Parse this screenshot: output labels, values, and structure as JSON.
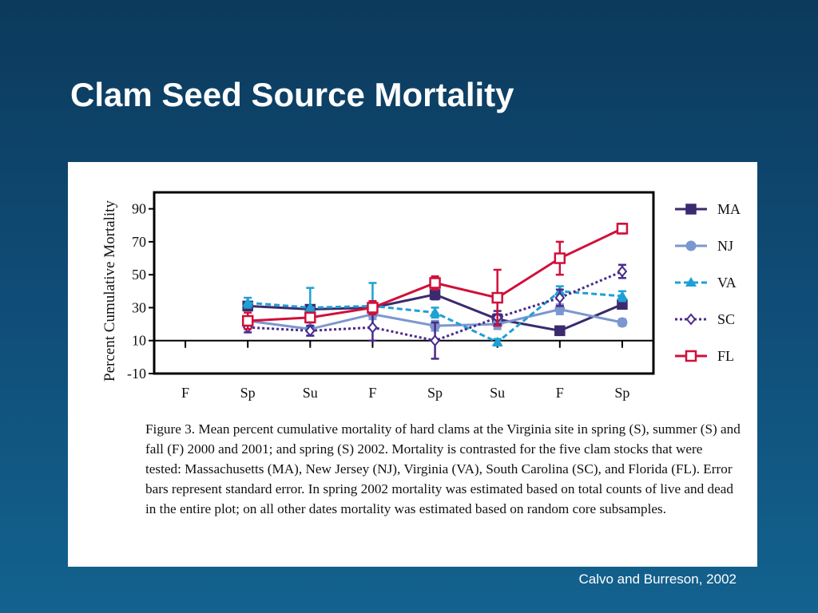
{
  "slide": {
    "title": "Clam Seed Source Mortality",
    "citation": "Calvo and Burreson, 2002",
    "caption": "Figure 3. Mean percent cumulative mortality of hard clams at the Virginia site in spring (S), summer (S) and fall (F) 2000 and 2001; and spring (S) 2002. Mortality is contrasted for the five clam stocks that were tested: Massachusetts (MA), New Jersey (NJ), Virginia (VA), South Carolina (SC), and Florida (FL). Error bars represent standard error. In spring 2002 mortality was estimated based on total counts of live and dead in the entire plot; on all other dates mortality was estimated based on random core subsamples."
  },
  "chart_data": {
    "type": "line",
    "title": "",
    "xlabel": "",
    "ylabel": "Percent Cumulative Mortality",
    "categories": [
      "F",
      "Sp",
      "Su",
      "F",
      "Sp",
      "Su",
      "F",
      "Sp"
    ],
    "yticks": [
      -10,
      10,
      30,
      50,
      70,
      90
    ],
    "ylim": [
      -10,
      100
    ],
    "reference_line_y": 10,
    "legend_position": "right",
    "series": [
      {
        "name": "MA",
        "color": "#3b2a6e",
        "marker": "square-filled",
        "dash": "solid",
        "values": [
          null,
          31,
          29,
          30,
          38,
          23,
          16,
          32
        ],
        "errors": [
          null,
          2,
          2,
          2,
          3,
          3,
          2,
          2
        ]
      },
      {
        "name": "NJ",
        "color": "#7b97cf",
        "marker": "circle-filled",
        "dash": "solid",
        "values": [
          null,
          22,
          17,
          26,
          19,
          20,
          29,
          21
        ],
        "errors": [
          null,
          2,
          4,
          3,
          3,
          3,
          3,
          2
        ]
      },
      {
        "name": "VA",
        "color": "#1ea0d4",
        "marker": "triangle-filled",
        "dash": "dashed",
        "values": [
          null,
          33,
          30,
          31,
          27,
          9,
          40,
          37
        ],
        "errors": [
          null,
          3,
          12,
          14,
          3,
          2,
          3,
          3
        ]
      },
      {
        "name": "SC",
        "color": "#4a2a8a",
        "marker": "diamond-open",
        "dash": "dotted",
        "values": [
          null,
          18,
          16,
          18,
          10,
          24,
          36,
          52
        ],
        "errors": [
          null,
          3,
          3,
          8,
          11,
          4,
          5,
          4
        ]
      },
      {
        "name": "FL",
        "color": "#d0103a",
        "marker": "square-open",
        "dash": "solid",
        "values": [
          null,
          22,
          24,
          30,
          45,
          36,
          60,
          78
        ],
        "errors": [
          null,
          5,
          3,
          4,
          4,
          17,
          10,
          3
        ]
      }
    ]
  }
}
